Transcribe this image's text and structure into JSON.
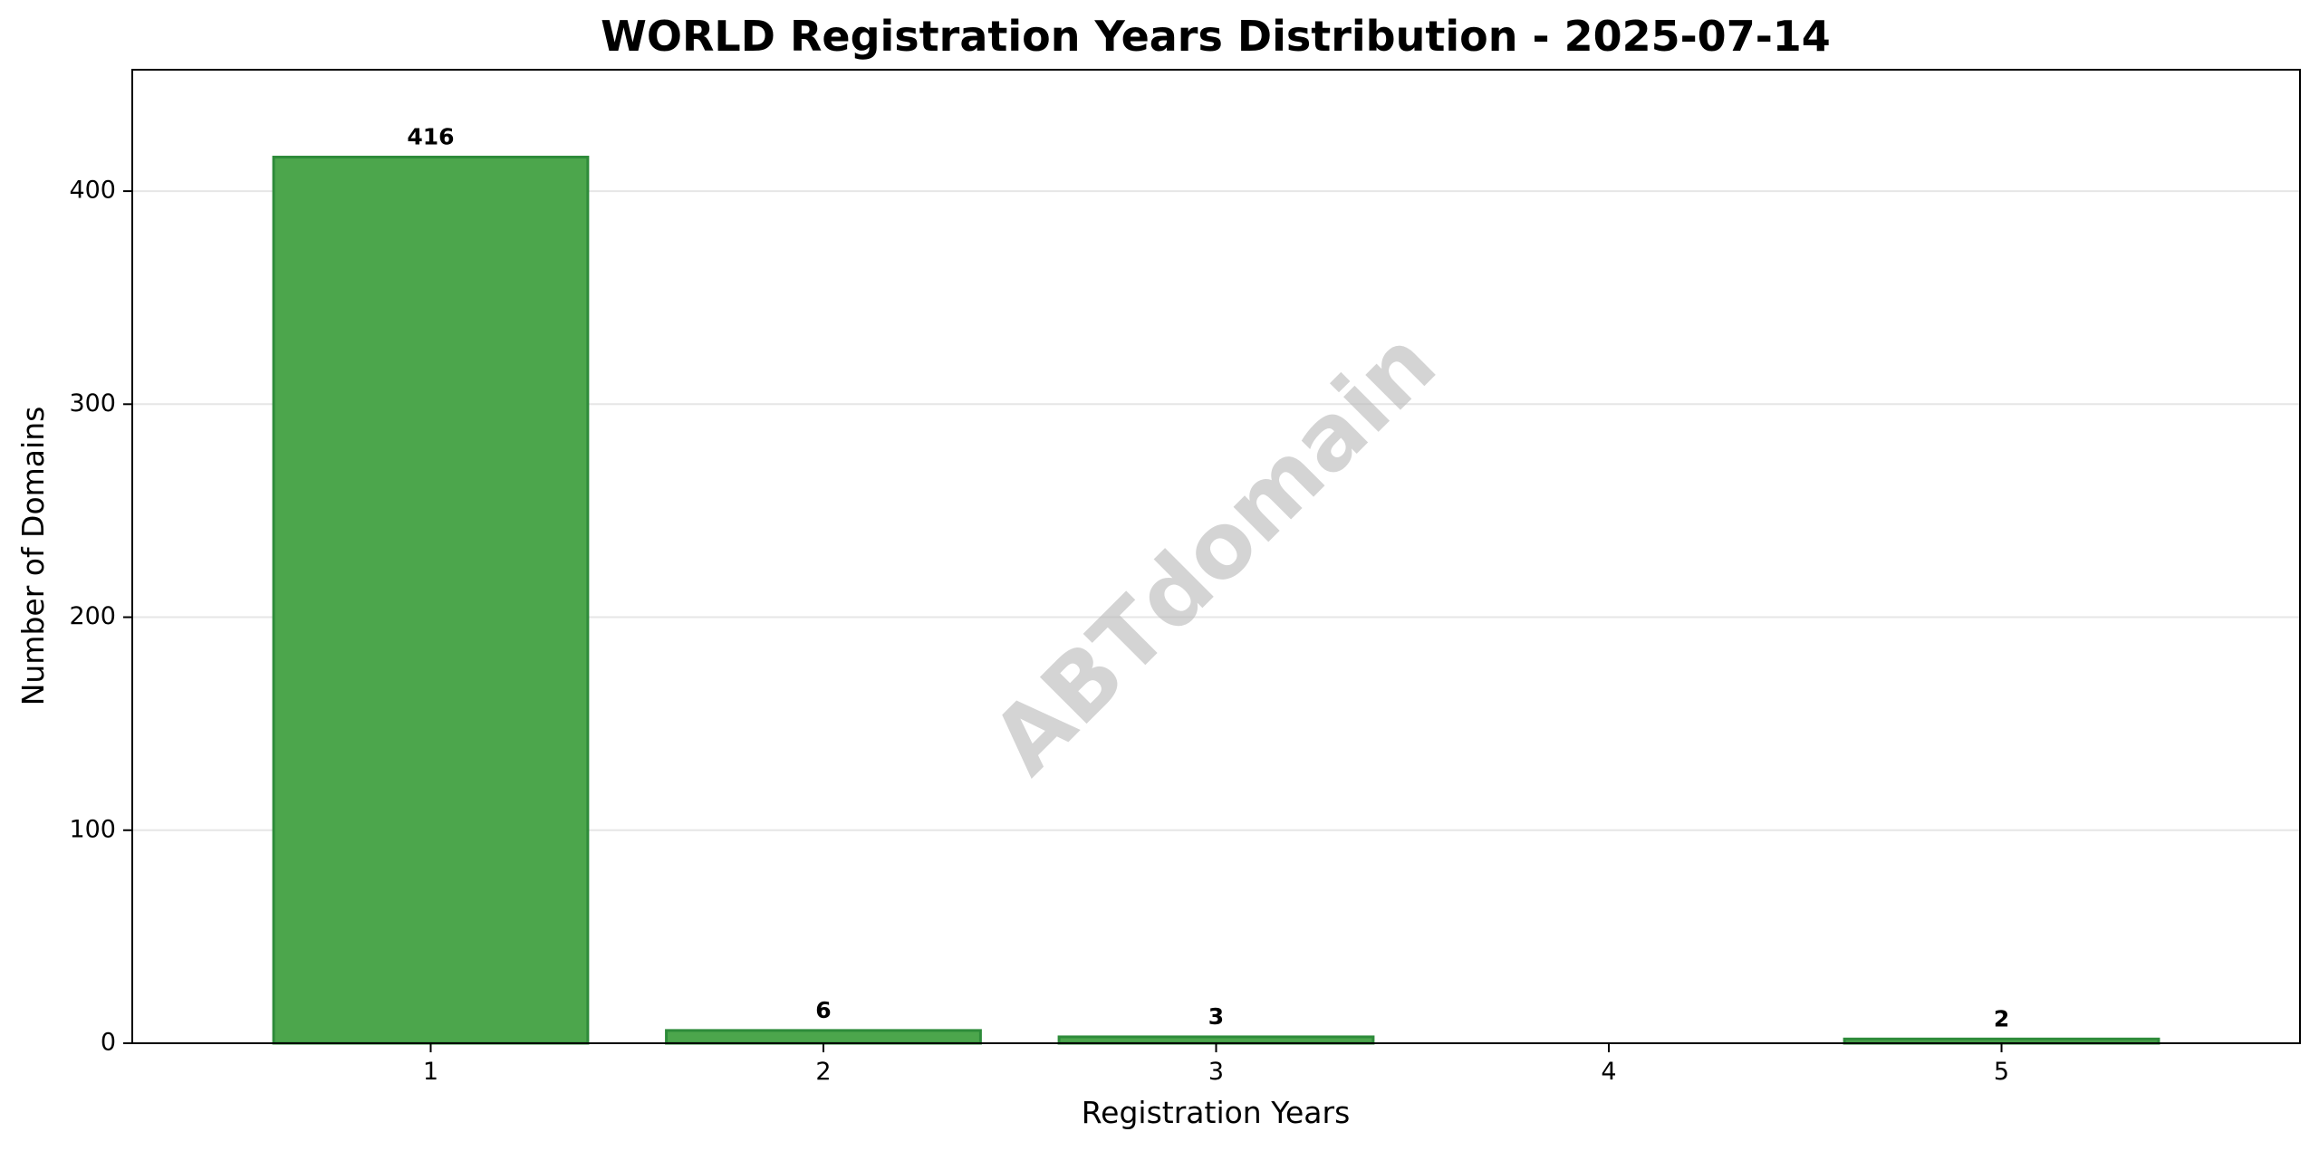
{
  "chart_data": {
    "type": "bar",
    "title": "WORLD Registration Years Distribution - 2025-07-14",
    "xlabel": "Registration Years",
    "ylabel": "Number of Domains",
    "categories": [
      "1",
      "2",
      "3",
      "4",
      "5"
    ],
    "values": [
      416,
      6,
      3,
      0,
      2
    ],
    "data_labels": [
      "416",
      "6",
      "3",
      "",
      "2"
    ],
    "ylim": [
      0,
      457
    ],
    "yticks": [
      0,
      100,
      200,
      300,
      400
    ],
    "grid": "horizontal",
    "bar_color": "#4ca64c",
    "bar_edge_color": "#2e8b3a",
    "watermark": "ABTdomain"
  }
}
